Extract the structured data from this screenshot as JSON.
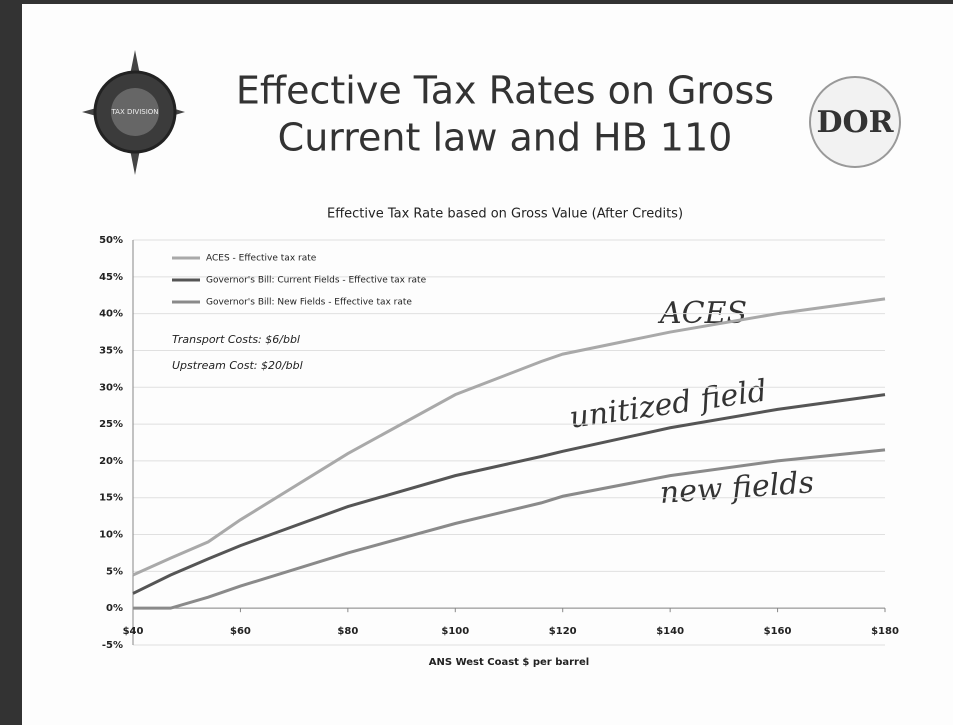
{
  "slide": {
    "title_lines": [
      "Effective Tax Rates on Gross",
      "Current law and HB 110"
    ],
    "left_logo_text": "TAX DIVISION",
    "right_logo_text": "DOR"
  },
  "chart_data": {
    "type": "line",
    "title": "Effective Tax Rate based on Gross Value (After Credits)",
    "x_label": "ANS West Coast $ per barrel",
    "x": [
      40,
      47,
      54,
      60,
      80,
      100,
      116,
      120,
      140,
      160,
      180
    ],
    "series": [
      {
        "name": "ACES - Effective tax rate",
        "color": "#a9a9a9",
        "values": [
          4.5,
          6.8,
          9,
          12,
          21,
          29,
          33.5,
          34.5,
          37.5,
          40,
          42
        ]
      },
      {
        "name": "Governor's Bill: Current Fields - Effective tax rate",
        "color": "#555555",
        "values": [
          2,
          4.5,
          6.7,
          8.5,
          13.8,
          18,
          20.6,
          21.3,
          24.5,
          27,
          29
        ]
      },
      {
        "name": "Governor's Bill: New Fields - Effective tax rate",
        "color": "#8a8a8a",
        "values": [
          0,
          0,
          1.5,
          3,
          7.5,
          11.5,
          14.3,
          15.2,
          18,
          20,
          21.5
        ]
      }
    ],
    "xlim": [
      40,
      180
    ],
    "xticks": [
      {
        "value": 40,
        "label": "$40"
      },
      {
        "value": 60,
        "label": "$60"
      },
      {
        "value": 80,
        "label": "$80"
      },
      {
        "value": 100,
        "label": "$100"
      },
      {
        "value": 120,
        "label": "$120"
      },
      {
        "value": 140,
        "label": "$140"
      },
      {
        "value": 160,
        "label": "$160"
      },
      {
        "value": 180,
        "label": "$180"
      }
    ],
    "ylim": [
      -5,
      50
    ],
    "yticks": [
      {
        "value": -5,
        "label": "-5%"
      },
      {
        "value": 0,
        "label": "0%"
      },
      {
        "value": 5,
        "label": "5%"
      },
      {
        "value": 10,
        "label": "10%"
      },
      {
        "value": 15,
        "label": "15%"
      },
      {
        "value": 20,
        "label": "20%"
      },
      {
        "value": 25,
        "label": "25%"
      },
      {
        "value": 30,
        "label": "30%"
      },
      {
        "value": 35,
        "label": "35%"
      },
      {
        "value": 40,
        "label": "40%"
      },
      {
        "value": 45,
        "label": "45%"
      },
      {
        "value": 50,
        "label": "50%"
      }
    ],
    "grid": true,
    "annotations": [
      "Transport Costs: $6/bbl",
      "Upstream Cost: $20/bbl"
    ],
    "handwritten": [
      "ACES",
      "unitized field",
      "new fields"
    ]
  }
}
